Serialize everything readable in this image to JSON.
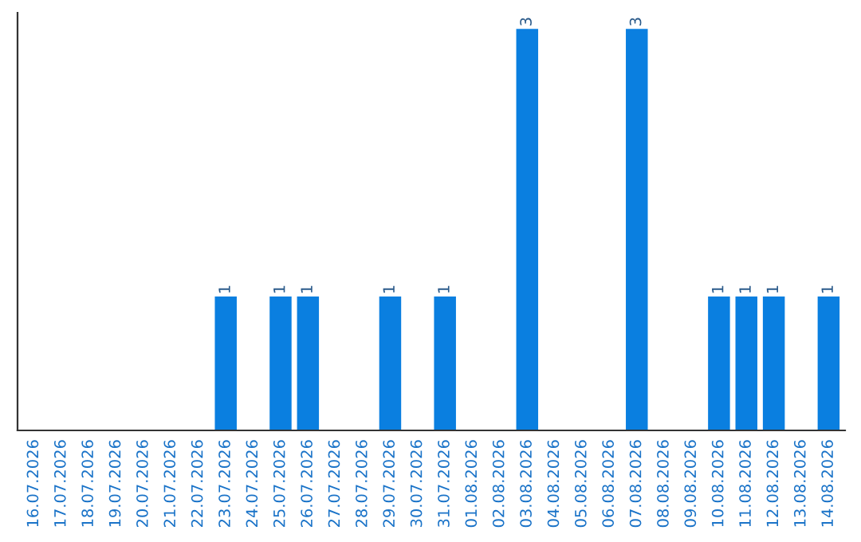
{
  "chart_data": {
    "type": "bar",
    "categories": [
      "16.07.2026",
      "17.07.2026",
      "18.07.2026",
      "19.07.2026",
      "20.07.2026",
      "21.07.2026",
      "22.07.2026",
      "23.07.2026",
      "24.07.2026",
      "25.07.2026",
      "26.07.2026",
      "27.07.2026",
      "28.07.2026",
      "29.07.2026",
      "30.07.2026",
      "31.07.2026",
      "01.08.2026",
      "02.08.2026",
      "03.08.2026",
      "04.08.2026",
      "05.08.2026",
      "06.08.2026",
      "07.08.2026",
      "08.08.2026",
      "09.08.2026",
      "10.08.2026",
      "11.08.2026",
      "12.08.2026",
      "13.08.2026",
      "14.08.2026"
    ],
    "values": [
      0,
      0,
      0,
      0,
      0,
      0,
      0,
      1,
      0,
      1,
      1,
      0,
      0,
      1,
      0,
      1,
      0,
      0,
      3,
      0,
      0,
      0,
      3,
      0,
      0,
      1,
      1,
      1,
      0,
      1
    ],
    "value_labels": [
      null,
      null,
      null,
      null,
      null,
      null,
      null,
      "1",
      null,
      "1",
      "1",
      null,
      null,
      "1",
      null,
      "1",
      null,
      null,
      "3",
      null,
      null,
      null,
      "3",
      null,
      null,
      "1",
      "1",
      "1",
      null,
      "1"
    ],
    "color": "#0a7fe0",
    "grid": false,
    "legend": false
  }
}
